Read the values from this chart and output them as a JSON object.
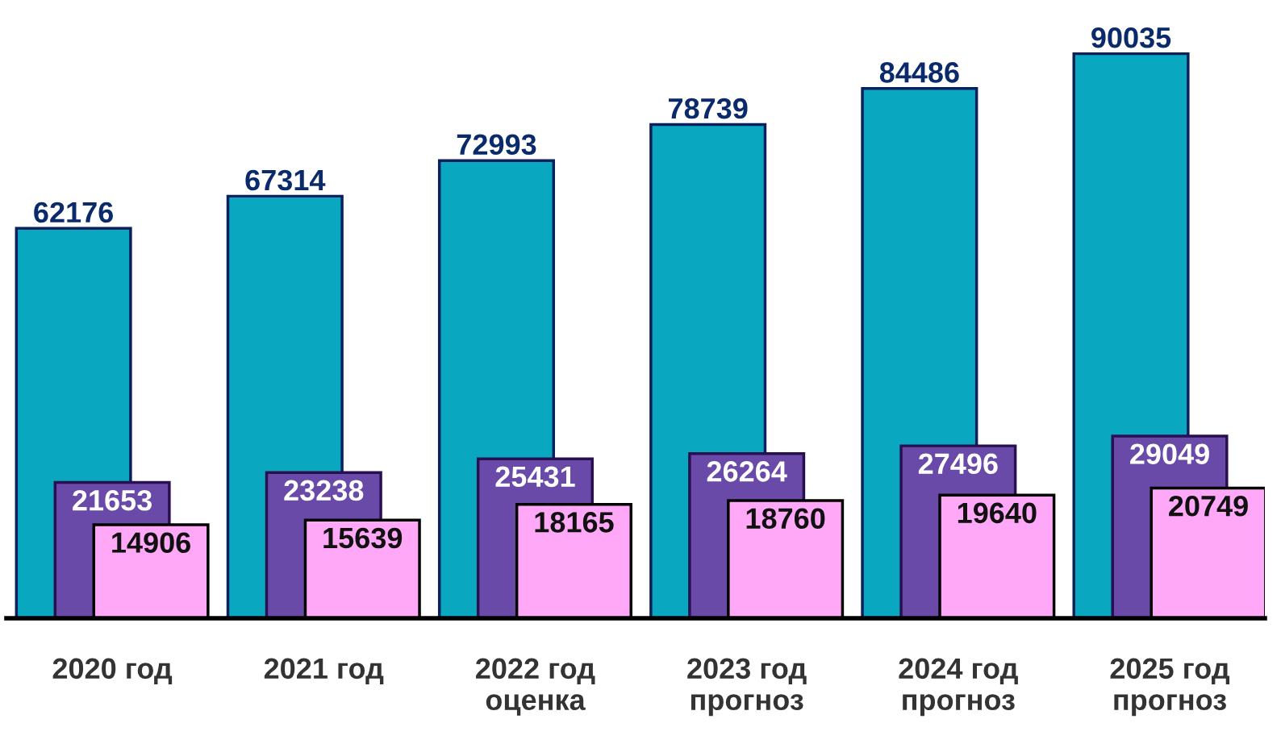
{
  "chart_data": {
    "type": "bar",
    "categories": [
      "2020 год",
      "2021 год",
      "2022 год\nоценка",
      "2023 год\nпрогноз",
      "2024 год\nпрогноз",
      "2025 год\nпрогноз"
    ],
    "series": [
      {
        "color": "#0aa8c0",
        "values": [
          62176,
          67314,
          72993,
          78739,
          84486,
          90035
        ]
      },
      {
        "color": "#6a4aa8",
        "values": [
          21653,
          23238,
          25431,
          26264,
          27496,
          29049
        ]
      },
      {
        "color": "#ffa8f8",
        "values": [
          14906,
          15639,
          18165,
          18760,
          19640,
          20749
        ]
      }
    ],
    "data_labels": true,
    "grid": false,
    "legend": false,
    "tick_labels": "x"
  }
}
